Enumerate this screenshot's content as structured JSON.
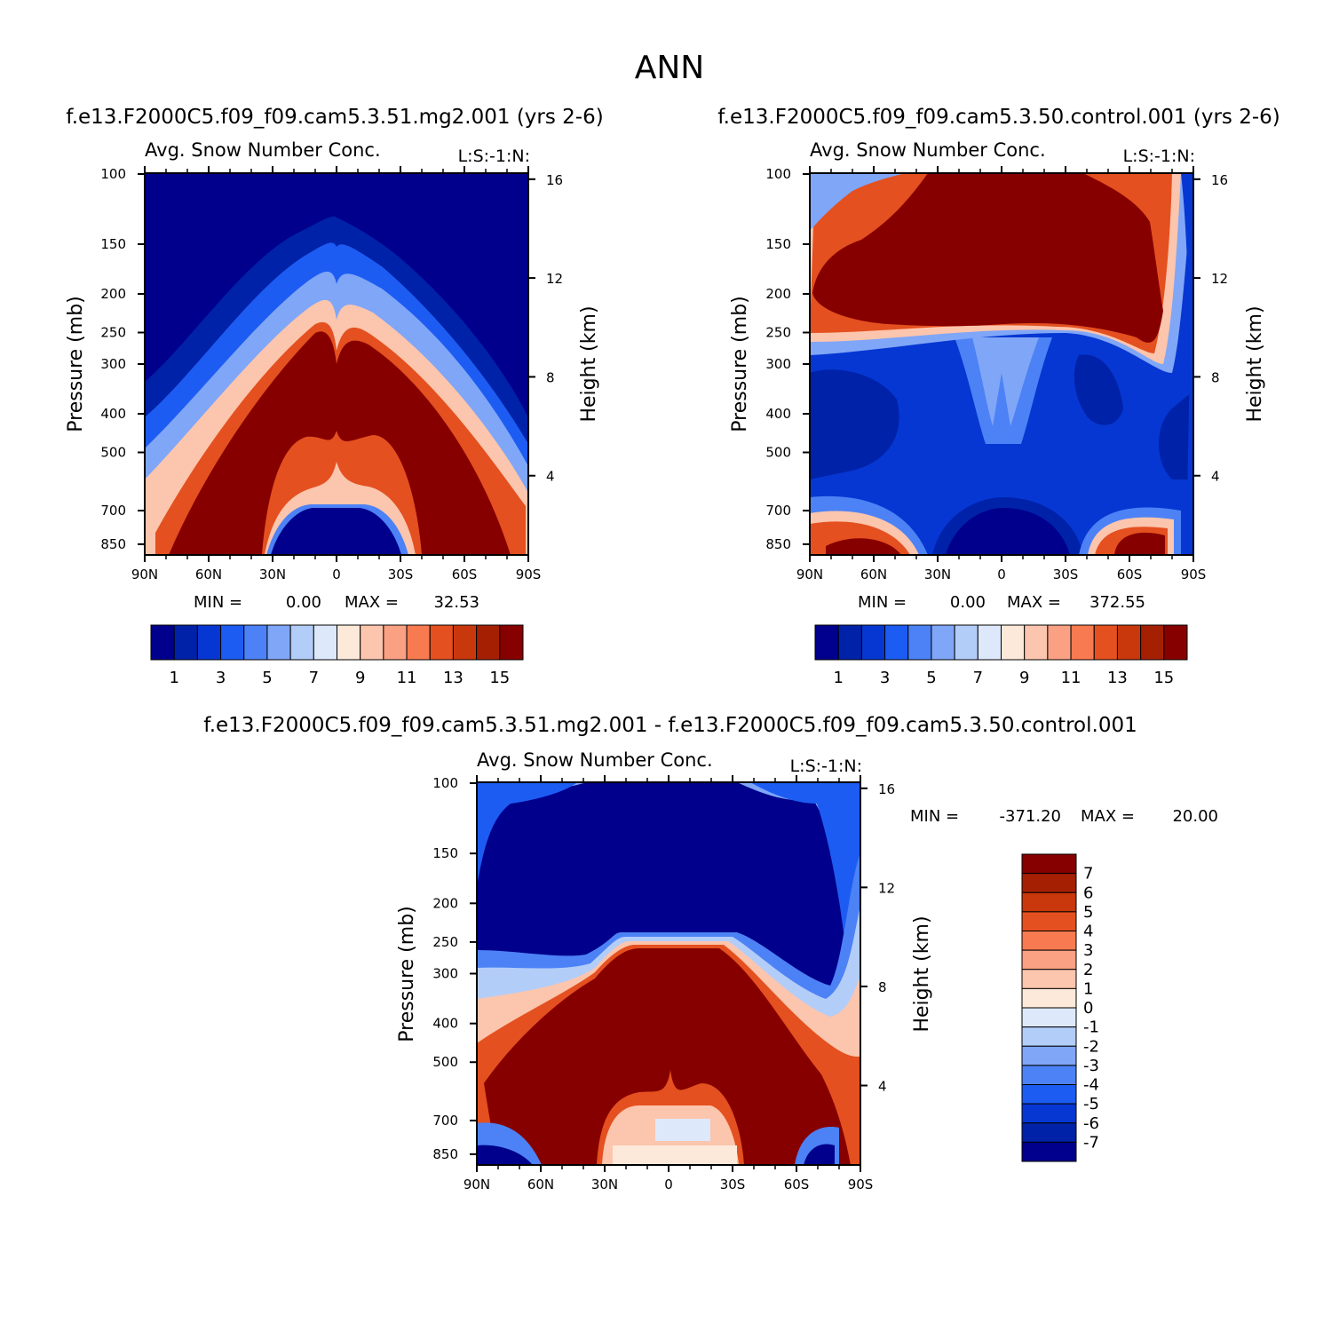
{
  "title": "ANN",
  "colors": {
    "abs_palette": [
      "#00008c",
      "#0022a8",
      "#0637d2",
      "#1d5cf2",
      "#4c82f5",
      "#80a6f7",
      "#b3cdf9",
      "#dde9fb",
      "#fde9d9",
      "#fcc5ad",
      "#f9a182",
      "#f77a50",
      "#e4501f",
      "#c9370d",
      "#a51f03",
      "#870000"
    ],
    "diff_palette": [
      "#00008c",
      "#0022a8",
      "#0637d2",
      "#1d5cf2",
      "#4c82f5",
      "#80a6f7",
      "#b3cdf9",
      "#dde9fb",
      "#fde9d9",
      "#fcc5ad",
      "#f9a182",
      "#f77a50",
      "#e4501f",
      "#c9370d",
      "#a51f03",
      "#870000"
    ]
  },
  "chart_data": [
    {
      "type": "contour",
      "id": "test",
      "case_title": "f.e13.F2000C5.f09_f09.cam5.3.51.mg2.001  (yrs 2-6)",
      "variable": "Avg. Snow Number Conc.",
      "units": "L:S:-1:N:",
      "ylabel": "Pressure (mb)",
      "ylabel_right": "Height (km)",
      "x_ticks": [
        "90N",
        "60N",
        "30N",
        "0",
        "30S",
        "60S",
        "90S"
      ],
      "y_ticks": [
        "100",
        "150",
        "200",
        "250",
        "300",
        "400",
        "500",
        "700",
        "850"
      ],
      "y_right_ticks": [
        "16",
        "12",
        "8",
        "4"
      ],
      "min_label": "MIN =",
      "min": "0.00",
      "max_label": "MAX =",
      "max": "32.53",
      "colorbar_labels": [
        "1",
        "3",
        "5",
        "7",
        "9",
        "11",
        "13",
        "15"
      ]
    },
    {
      "type": "contour",
      "id": "control",
      "case_title": "f.e13.F2000C5.f09_f09.cam5.3.50.control.001  (yrs 2-6)",
      "variable": "Avg. Snow Number Conc.",
      "units": "L:S:-1:N:",
      "ylabel": "Pressure (mb)",
      "ylabel_right": "Height (km)",
      "x_ticks": [
        "90N",
        "60N",
        "30N",
        "0",
        "30S",
        "60S",
        "90S"
      ],
      "y_ticks": [
        "100",
        "150",
        "200",
        "250",
        "300",
        "400",
        "500",
        "700",
        "850"
      ],
      "y_right_ticks": [
        "16",
        "12",
        "8",
        "4"
      ],
      "min_label": "MIN =",
      "min": "0.00",
      "max_label": "MAX =",
      "max": "372.55",
      "colorbar_labels": [
        "1",
        "3",
        "5",
        "7",
        "9",
        "11",
        "13",
        "15"
      ]
    },
    {
      "type": "contour",
      "id": "difference",
      "case_title": "f.e13.F2000C5.f09_f09.cam5.3.51.mg2.001 - f.e13.F2000C5.f09_f09.cam5.3.50.control.001",
      "variable": "Avg. Snow Number Conc.",
      "units": "L:S:-1:N:",
      "ylabel": "Pressure (mb)",
      "ylabel_right": "Height (km)",
      "x_ticks": [
        "90N",
        "60N",
        "30N",
        "0",
        "30S",
        "60S",
        "90S"
      ],
      "y_ticks": [
        "100",
        "150",
        "200",
        "250",
        "300",
        "400",
        "500",
        "700",
        "850"
      ],
      "y_right_ticks": [
        "16",
        "12",
        "8",
        "4"
      ],
      "min_label": "MIN =",
      "min": "-371.20",
      "max_label": "MAX =",
      "max": "20.00",
      "colorbar_labels": [
        "7",
        "6",
        "5",
        "4",
        "3",
        "2",
        "1",
        "0",
        "-1",
        "-2",
        "-3",
        "-4",
        "-5",
        "-6",
        "-7"
      ]
    }
  ]
}
